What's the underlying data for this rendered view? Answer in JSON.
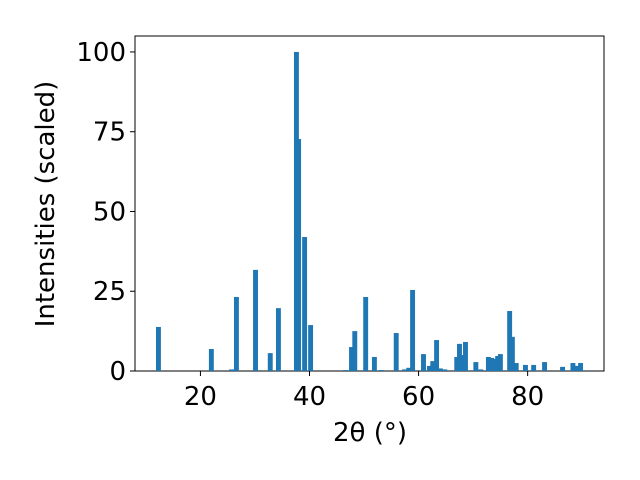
{
  "chart_data": {
    "type": "bar",
    "xlabel": "2θ (°)",
    "ylabel": "Intensities (scaled)",
    "color": "#1f77b4",
    "x": [
      12.3,
      22.0,
      25.7,
      26.6,
      30.1,
      32.8,
      34.3,
      37.6,
      38.0,
      39.1,
      40.2,
      46.6,
      47.7,
      48.3,
      50.3,
      51.9,
      53.2,
      55.9,
      57.4,
      58.2,
      58.9,
      60.9,
      62.0,
      62.6,
      63.3,
      64.0,
      64.8,
      67.0,
      67.5,
      68.1,
      68.6,
      70.5,
      71.4,
      72.8,
      73.4,
      73.9,
      74.5,
      75.0,
      76.7,
      77.2,
      77.9,
      79.6,
      81.1,
      83.1,
      86.4,
      88.3,
      89.0,
      89.7
    ],
    "values": [
      13.8,
      6.9,
      0.5,
      23.2,
      31.7,
      5.6,
      19.7,
      100,
      72.7,
      42,
      14.4,
      0.3,
      7.5,
      12.5,
      23.2,
      4.4,
      0.3,
      11.9,
      0.5,
      1,
      25.4,
      5.3,
      1.6,
      3.1,
      9.7,
      0.8,
      0.5,
      4.4,
      8.5,
      5,
      9.1,
      2.8,
      0.5,
      4.4,
      4.1,
      3.8,
      4.7,
      5.3,
      18.8,
      10.7,
      2.5,
      1.9,
      1.9,
      2.8,
      1.3,
      2.5,
      1.6,
      2.5
    ],
    "xlim": [
      8,
      94
    ],
    "ylim": [
      0,
      105
    ],
    "xticks": [
      20,
      40,
      60,
      80
    ],
    "yticks": [
      0,
      25,
      50,
      75,
      100
    ]
  }
}
